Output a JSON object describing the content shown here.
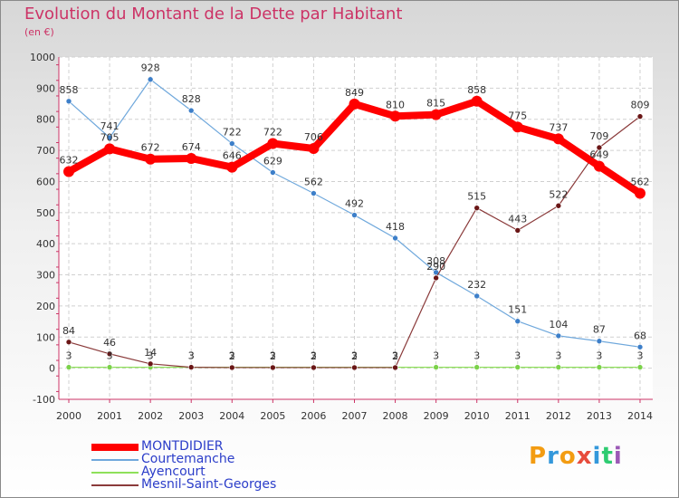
{
  "title": "Evolution du Montant de la Dette par Habitant",
  "subtitle": "(en €)",
  "logo_text": "Proxiti",
  "chart_data": {
    "type": "line",
    "title": "Evolution du Montant de la Dette par Habitant",
    "subtitle": "(en €)",
    "x": [
      2000,
      2001,
      2002,
      2003,
      2004,
      2005,
      2006,
      2007,
      2008,
      2009,
      2010,
      2011,
      2012,
      2013,
      2014
    ],
    "ylim": [
      -100,
      1000
    ],
    "yticks": [
      -100,
      0,
      100,
      200,
      300,
      400,
      500,
      600,
      700,
      800,
      900,
      1000
    ],
    "grid": true,
    "legend_position": "bottom-left",
    "series": [
      {
        "name": "MONTDIDIER",
        "color": "#ff0000",
        "values": [
          632,
          705,
          672,
          674,
          646,
          722,
          706,
          849,
          810,
          815,
          858,
          775,
          737,
          649,
          562
        ]
      },
      {
        "name": "Courtemanche",
        "color": "#5b9bd5",
        "values": [
          858,
          741,
          928,
          828,
          722,
          629,
          562,
          492,
          418,
          308,
          232,
          151,
          104,
          87,
          68
        ]
      },
      {
        "name": "Ayencourt",
        "color": "#8ee05a",
        "values": [
          3,
          3,
          3,
          3,
          3,
          3,
          3,
          3,
          3,
          3,
          3,
          3,
          3,
          3,
          3
        ]
      },
      {
        "name": "Mesnil-Saint-Georges",
        "color": "#7a2a2a",
        "values": [
          84,
          46,
          14,
          3,
          2,
          2,
          2,
          2,
          2,
          290,
          515,
          443,
          522,
          709,
          809
        ]
      }
    ]
  }
}
